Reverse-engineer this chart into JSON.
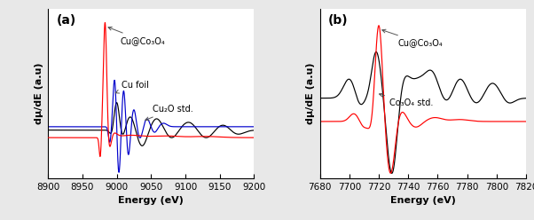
{
  "panel_a": {
    "label": "(a)",
    "xlabel": "Energy (eV)",
    "ylabel": "dμ/dE (a.u)",
    "xlim": [
      8900,
      9200
    ],
    "x_ticks": [
      8900,
      8950,
      9000,
      9050,
      9100,
      9150,
      9200
    ]
  },
  "panel_b": {
    "label": "(b)",
    "xlabel": "Energy (eV)",
    "ylabel": "dμ/dE (a.u)",
    "xlim": [
      7680,
      7820
    ],
    "x_ticks": [
      7680,
      7700,
      7720,
      7740,
      7760,
      7780,
      7800,
      7820
    ]
  },
  "colors": {
    "red": "#FF0000",
    "blue": "#0000CC",
    "black": "#000000",
    "bg": "#e8e8e8"
  },
  "label_fontsize": 8,
  "tick_fontsize": 7.5,
  "annot_fontsize": 7
}
